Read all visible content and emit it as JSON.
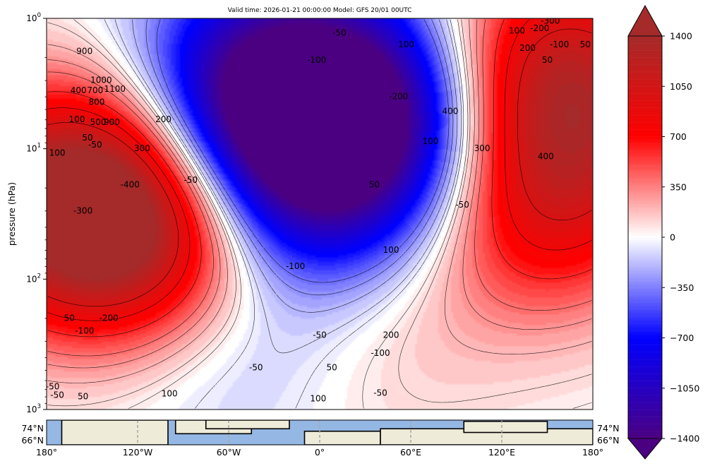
{
  "chart_data": [
    {
      "type": "heatmap",
      "title": "Valid time: 2026-01-21 00:00:00 Model: GFS 20/01 00UTC",
      "xlabel": "",
      "ylabel": "pressure (hPa)",
      "y_scale": "log",
      "y_inverted": true,
      "ylim": [
        1000,
        1
      ],
      "xlim": [
        -180,
        180
      ],
      "y_ticks": [
        1000,
        100,
        10,
        1
      ],
      "y_tick_labels": [
        "10³",
        "10²",
        "10¹",
        "10⁰"
      ],
      "y_tick_exponents": [
        "3",
        "2",
        "1",
        "0"
      ],
      "grid": false,
      "field_structure": [
        {
          "lon": -155,
          "p": 25,
          "value": 1400
        },
        {
          "lon": -110,
          "p": 40,
          "value": 900
        },
        {
          "lon": -30,
          "p": 4,
          "value": -1400
        },
        {
          "lon": -10,
          "p": 15,
          "value": -900
        },
        {
          "lon": 55,
          "p": 6,
          "value": -1100
        },
        {
          "lon": 150,
          "p": 3,
          "value": 1300
        },
        {
          "lon": 140,
          "p": 25,
          "value": 900
        },
        {
          "lon": 10,
          "p": 280,
          "value": 320
        },
        {
          "lon": -40,
          "p": 250,
          "value": -450
        }
      ],
      "colorbar": {
        "min": -1400,
        "max": 1400,
        "extend": "both",
        "ticks": [
          -1400,
          -1050,
          -700,
          -350,
          0,
          350,
          700,
          1050,
          1400
        ],
        "tick_labels": [
          "−1400",
          "−1050",
          "−700",
          "−350",
          "0",
          "350",
          "700",
          "1050",
          "1400"
        ],
        "colors": {
          "min": "#4b0082",
          "low": "#0000ff",
          "mid": "#ffffff",
          "high": "#ff0000",
          "max": "#a52a2a"
        }
      },
      "contour_labels": [
        {
          "text": "900",
          "lon": -155,
          "p": 1.8
        },
        {
          "text": "1000",
          "lon": -144,
          "p": 3.0
        },
        {
          "text": "1100",
          "lon": -135,
          "p": 3.5
        },
        {
          "text": "400",
          "lon": -159,
          "p": 3.6
        },
        {
          "text": "700",
          "lon": -148,
          "p": 3.6
        },
        {
          "text": "800",
          "lon": -147,
          "p": 4.4
        },
        {
          "text": "100",
          "lon": -160,
          "p": 6.0
        },
        {
          "text": "500",
          "lon": -146,
          "p": 6.3
        },
        {
          "text": "900",
          "lon": -137,
          "p": 6.3
        },
        {
          "text": "50",
          "lon": -153,
          "p": 8.3
        },
        {
          "text": "-50",
          "lon": -148,
          "p": 9.4
        },
        {
          "text": "100",
          "lon": -173,
          "p": 10.8
        },
        {
          "text": "300",
          "lon": -117,
          "p": 10.0
        },
        {
          "text": "200",
          "lon": -103,
          "p": 6.0
        },
        {
          "text": "-400",
          "lon": -125,
          "p": 19.0
        },
        {
          "text": "-300",
          "lon": -156,
          "p": 30.0
        },
        {
          "text": "-50",
          "lon": -85,
          "p": 17.5
        },
        {
          "text": "-200",
          "lon": -139,
          "p": 200
        },
        {
          "text": "-100",
          "lon": -155,
          "p": 250
        },
        {
          "text": "50",
          "lon": -165,
          "p": 200
        },
        {
          "text": "-100",
          "lon": -16,
          "p": 80
        },
        {
          "text": "100",
          "lon": 47,
          "p": 60
        },
        {
          "text": "-50",
          "lon": 0,
          "p": 270
        },
        {
          "text": "200",
          "lon": 47,
          "p": 270
        },
        {
          "text": "-100",
          "lon": 40,
          "p": 370
        },
        {
          "text": "50",
          "lon": 8,
          "p": 480
        },
        {
          "text": "-50",
          "lon": -42,
          "p": 480
        },
        {
          "text": "-50",
          "lon": 40,
          "p": 750
        },
        {
          "text": "100",
          "lon": -99,
          "p": 760
        },
        {
          "text": "100",
          "lon": -1,
          "p": 830
        },
        {
          "text": "-50",
          "lon": -176,
          "p": 670
        },
        {
          "text": "-50",
          "lon": -173,
          "p": 780
        },
        {
          "text": "50",
          "lon": -156,
          "p": 800
        },
        {
          "text": "-50",
          "lon": 13,
          "p": 1.3
        },
        {
          "text": "-100",
          "lon": -2,
          "p": 2.1
        },
        {
          "text": "100",
          "lon": 57,
          "p": 1.6
        },
        {
          "text": "-200",
          "lon": 52,
          "p": 4.0
        },
        {
          "text": "400",
          "lon": 86,
          "p": 5.2
        },
        {
          "text": "100",
          "lon": 73,
          "p": 8.8
        },
        {
          "text": "300",
          "lon": 107,
          "p": 10.0
        },
        {
          "text": "50",
          "lon": 36,
          "p": 19.0
        },
        {
          "text": "-50",
          "lon": 94,
          "p": 27.0
        },
        {
          "text": "100",
          "lon": 130,
          "p": 1.25
        },
        {
          "text": "-300",
          "lon": 152,
          "p": 1.05
        },
        {
          "text": "-200",
          "lon": 145,
          "p": 1.2
        },
        {
          "text": "200",
          "lon": 137,
          "p": 1.7
        },
        {
          "text": "-100",
          "lon": 158,
          "p": 1.6
        },
        {
          "text": "50",
          "lon": 150,
          "p": 2.1
        },
        {
          "text": "50",
          "lon": 175,
          "p": 1.6
        },
        {
          "text": "400",
          "lon": 149,
          "p": 11.5
        }
      ]
    },
    {
      "type": "map",
      "xlim": [
        -180,
        180
      ],
      "x_ticks": [
        -180,
        -120,
        -60,
        0,
        60,
        120,
        180
      ],
      "x_tick_labels": [
        "180°",
        "120°W",
        "60°W",
        "0°",
        "60°E",
        "120°E",
        "180°"
      ],
      "lat_labels": [
        "74°N",
        "66°N"
      ],
      "ocean_color": "#94b8e3",
      "land_color": "#efebd9",
      "coastline_color": "#000000",
      "gridline_color": "#a6a6a6"
    }
  ]
}
